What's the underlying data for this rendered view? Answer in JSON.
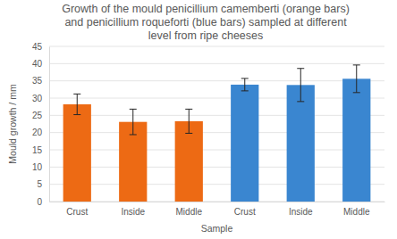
{
  "chart_data": {
    "type": "bar",
    "title": [
      "Growth of the mould penicillium camemberti (orange bars)",
      "and penicillium roqueforti (blue bars) sampled at different",
      "level from ripe cheeses"
    ],
    "x_label": "Sample",
    "y_label": "Mould growth / mm",
    "categories": [
      "Crust",
      "Inside",
      "Middle",
      "Crust",
      "Inside",
      "Middle"
    ],
    "values": [
      28.2,
      23.1,
      23.3,
      33.9,
      33.8,
      35.6
    ],
    "errors": [
      3.0,
      3.7,
      3.5,
      1.8,
      4.8,
      4.0
    ],
    "colors": [
      "#ed6a14",
      "#ed6a14",
      "#ed6a14",
      "#3a86d0",
      "#3a86d0",
      "#3a86d0"
    ],
    "ylim": [
      0,
      45
    ],
    "yticks": [
      0,
      5,
      10,
      15,
      20,
      25,
      30,
      35,
      40,
      45
    ],
    "grid": true
  }
}
